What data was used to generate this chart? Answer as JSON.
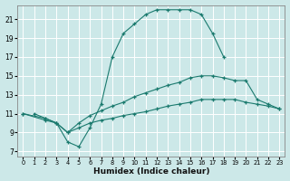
{
  "xlabel": "Humidex (Indice chaleur)",
  "bg_color": "#cce8e8",
  "grid_color": "#ffffff",
  "line_color": "#1a7a6e",
  "xlim": [
    -0.5,
    23.5
  ],
  "ylim": [
    6.5,
    22.5
  ],
  "xticks": [
    0,
    1,
    2,
    3,
    4,
    5,
    6,
    7,
    8,
    9,
    10,
    11,
    12,
    13,
    14,
    15,
    16,
    17,
    18,
    19,
    20,
    21,
    22,
    23
  ],
  "yticks": [
    7,
    9,
    11,
    13,
    15,
    17,
    19,
    21
  ],
  "curve1_x": [
    1,
    2,
    3,
    4,
    5,
    6,
    7,
    8,
    9,
    10,
    11,
    12,
    13,
    14,
    15,
    16,
    17,
    18
  ],
  "curve1_y": [
    11,
    10.5,
    10,
    8,
    7.5,
    9.5,
    12,
    17,
    19.5,
    20.5,
    21.5,
    22,
    22,
    22,
    22,
    21.5,
    19.5,
    17
  ],
  "curve2_x": [
    0,
    2,
    3,
    4,
    5,
    6,
    7,
    8,
    9,
    10,
    11,
    12,
    13,
    14,
    15,
    16,
    17,
    18,
    19,
    20,
    21,
    22,
    23
  ],
  "curve2_y": [
    11,
    10.5,
    10,
    9,
    10,
    10.8,
    11.3,
    11.8,
    12.2,
    12.8,
    13.2,
    13.6,
    14.0,
    14.3,
    14.8,
    15.0,
    15.0,
    14.8,
    14.5,
    14.5,
    12.5,
    12.0,
    11.5
  ],
  "curve3_x": [
    0,
    2,
    3,
    4,
    5,
    6,
    7,
    8,
    9,
    10,
    11,
    12,
    13,
    14,
    15,
    16,
    17,
    18,
    19,
    20,
    21,
    22,
    23
  ],
  "curve3_y": [
    11,
    10.3,
    10,
    9,
    9.5,
    10,
    10.3,
    10.5,
    10.8,
    11.0,
    11.2,
    11.5,
    11.8,
    12.0,
    12.2,
    12.5,
    12.5,
    12.5,
    12.5,
    12.2,
    12.0,
    11.8,
    11.5
  ]
}
